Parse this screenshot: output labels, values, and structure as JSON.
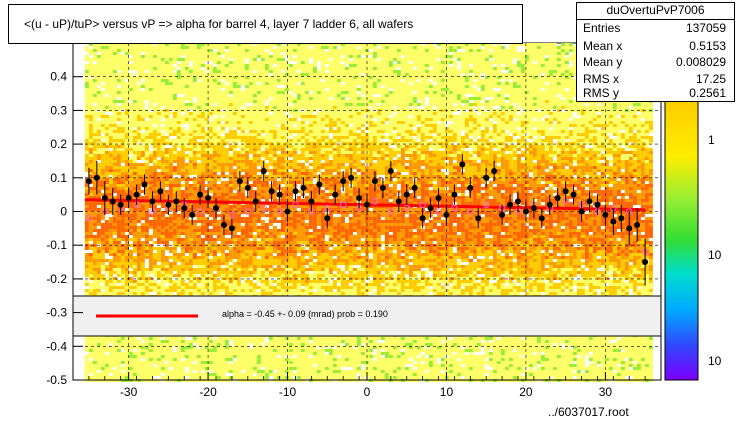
{
  "title": "<(u - uP)/tuP> versus   vP => alpha for barrel 4, layer 7 ladder 6, all wafers",
  "stats": {
    "name": "duOvertuPvP7006",
    "rows": [
      {
        "label": "Entries",
        "value": "137059"
      },
      {
        "label": "Mean x",
        "value": "0.5153"
      },
      {
        "label": "Mean y",
        "value": "0.008029"
      },
      {
        "label": "RMS x",
        "value": "17.25"
      },
      {
        "label": "RMS y",
        "value": "0.2561"
      }
    ]
  },
  "fit_label": "alpha =   -0.45 +-  0.09 (mrad) prob = 0.190",
  "footer": "../6037017.root",
  "colors": {
    "background": "#ffffff",
    "heat_low": "#ffff66",
    "heat_mid": "#ffcc00",
    "heat_high": "#ff6600",
    "heat_green": "#99ee33",
    "profile": "#000000",
    "fit_line": "#ff0000",
    "legend_band": "#f0f0f0",
    "gray_points": "#ff66cc"
  },
  "chart_data": {
    "type": "scatter",
    "title": "<(u - uP)/tuP> versus   vP => alpha for barrel 4, layer 7 ladder 6, all wafers",
    "xlim": [
      -37,
      37
    ],
    "ylim": [
      -0.5,
      0.5
    ],
    "x_ticks": [
      -30,
      -20,
      -10,
      0,
      10,
      20,
      30
    ],
    "y_ticks": [
      -0.5,
      -0.4,
      -0.3,
      -0.2,
      -0.1,
      0,
      0.1,
      0.2,
      0.3,
      0.4
    ],
    "y_tick_labels": [
      "-0.5",
      "-0.4",
      "-0.3",
      "-0.2",
      "-0.1",
      "0",
      "0.1",
      "0.2",
      "0.3",
      "0.4"
    ],
    "grid": true,
    "heatmap_x_range": [
      -35.5,
      35.5
    ],
    "heatmap_y_range": [
      -0.5,
      0.5
    ],
    "z_axis_labels": [
      "1",
      "10",
      "10"
    ],
    "fit_line": {
      "x": [
        -35.5,
        35
      ],
      "y": [
        0.035,
        0.005
      ],
      "slope_mrad": -0.45,
      "slope_err_mrad": 0.09,
      "prob": 0.19
    },
    "profile_points": {
      "x": [
        -35,
        -34,
        -33,
        -32,
        -31,
        -30,
        -29,
        -28,
        -27,
        -26,
        -25,
        -24,
        -23,
        -22,
        -21,
        -20,
        -19,
        -18,
        -17,
        -16,
        -15,
        -14,
        -13,
        -12,
        -11,
        -10,
        -9,
        -8,
        -7,
        -6,
        -5,
        -4,
        -3,
        -2,
        -1,
        0,
        1,
        2,
        3,
        4,
        5,
        6,
        7,
        8,
        9,
        10,
        11,
        12,
        13,
        14,
        15,
        16,
        17,
        18,
        19,
        20,
        21,
        22,
        23,
        24,
        25,
        26,
        27,
        28,
        29,
        30,
        31,
        32,
        33,
        34,
        35
      ],
      "y": [
        0.09,
        0.1,
        0.04,
        0.03,
        0.02,
        0.04,
        0.05,
        0.08,
        0.03,
        0.06,
        0.02,
        0.03,
        0.01,
        -0.01,
        0.05,
        0.04,
        0.01,
        -0.04,
        -0.05,
        0.09,
        0.07,
        0.03,
        0.12,
        0.06,
        0.05,
        0.0,
        0.06,
        0.07,
        0.03,
        0.08,
        -0.02,
        0.05,
        0.09,
        0.1,
        0.04,
        0.02,
        0.09,
        0.07,
        0.12,
        0.03,
        0.05,
        0.07,
        -0.02,
        0.01,
        0.04,
        -0.01,
        0.05,
        0.14,
        0.07,
        -0.02,
        0.1,
        0.12,
        -0.01,
        0.02,
        0.03,
        0.0,
        0.01,
        -0.02,
        0.02,
        0.04,
        0.06,
        0.05,
        0.0,
        0.03,
        0.02,
        -0.01,
        -0.03,
        -0.02,
        -0.05,
        -0.04,
        -0.15
      ],
      "yerr": [
        0.04,
        0.05,
        0.05,
        0.04,
        0.03,
        0.03,
        0.03,
        0.03,
        0.03,
        0.03,
        0.03,
        0.03,
        0.03,
        0.03,
        0.03,
        0.03,
        0.03,
        0.03,
        0.03,
        0.03,
        0.03,
        0.03,
        0.03,
        0.03,
        0.03,
        0.03,
        0.03,
        0.03,
        0.03,
        0.03,
        0.03,
        0.03,
        0.03,
        0.03,
        0.03,
        0.03,
        0.03,
        0.03,
        0.03,
        0.03,
        0.03,
        0.03,
        0.03,
        0.03,
        0.03,
        0.03,
        0.03,
        0.03,
        0.03,
        0.03,
        0.03,
        0.03,
        0.03,
        0.03,
        0.03,
        0.03,
        0.03,
        0.03,
        0.03,
        0.03,
        0.03,
        0.03,
        0.03,
        0.03,
        0.03,
        0.03,
        0.04,
        0.04,
        0.05,
        0.05,
        0.07
      ]
    },
    "secondary_points": {
      "x": [
        -35,
        -33,
        -31,
        -29,
        -27,
        -25,
        -23,
        -21,
        -19,
        -17,
        -15,
        -13,
        -11,
        -9,
        -7,
        -5,
        -3,
        -1,
        1,
        3,
        5,
        7,
        9,
        11,
        13,
        15,
        17,
        19,
        21,
        23,
        25,
        27,
        29,
        31,
        33,
        35
      ],
      "y": [
        -0.02,
        0.0,
        0.01,
        0.02,
        0.0,
        0.01,
        0.02,
        0.0,
        0.01,
        -0.01,
        0.0,
        0.01,
        0.0,
        0.02,
        0.0,
        0.01,
        0.02,
        0.01,
        0.03,
        0.0,
        0.01,
        0.02,
        0.0,
        0.01,
        0.0,
        0.02,
        0.01,
        0.0,
        0.02,
        0.01,
        0.03,
        0.02,
        0.0,
        0.01,
        0.0,
        -0.12
      ]
    }
  }
}
